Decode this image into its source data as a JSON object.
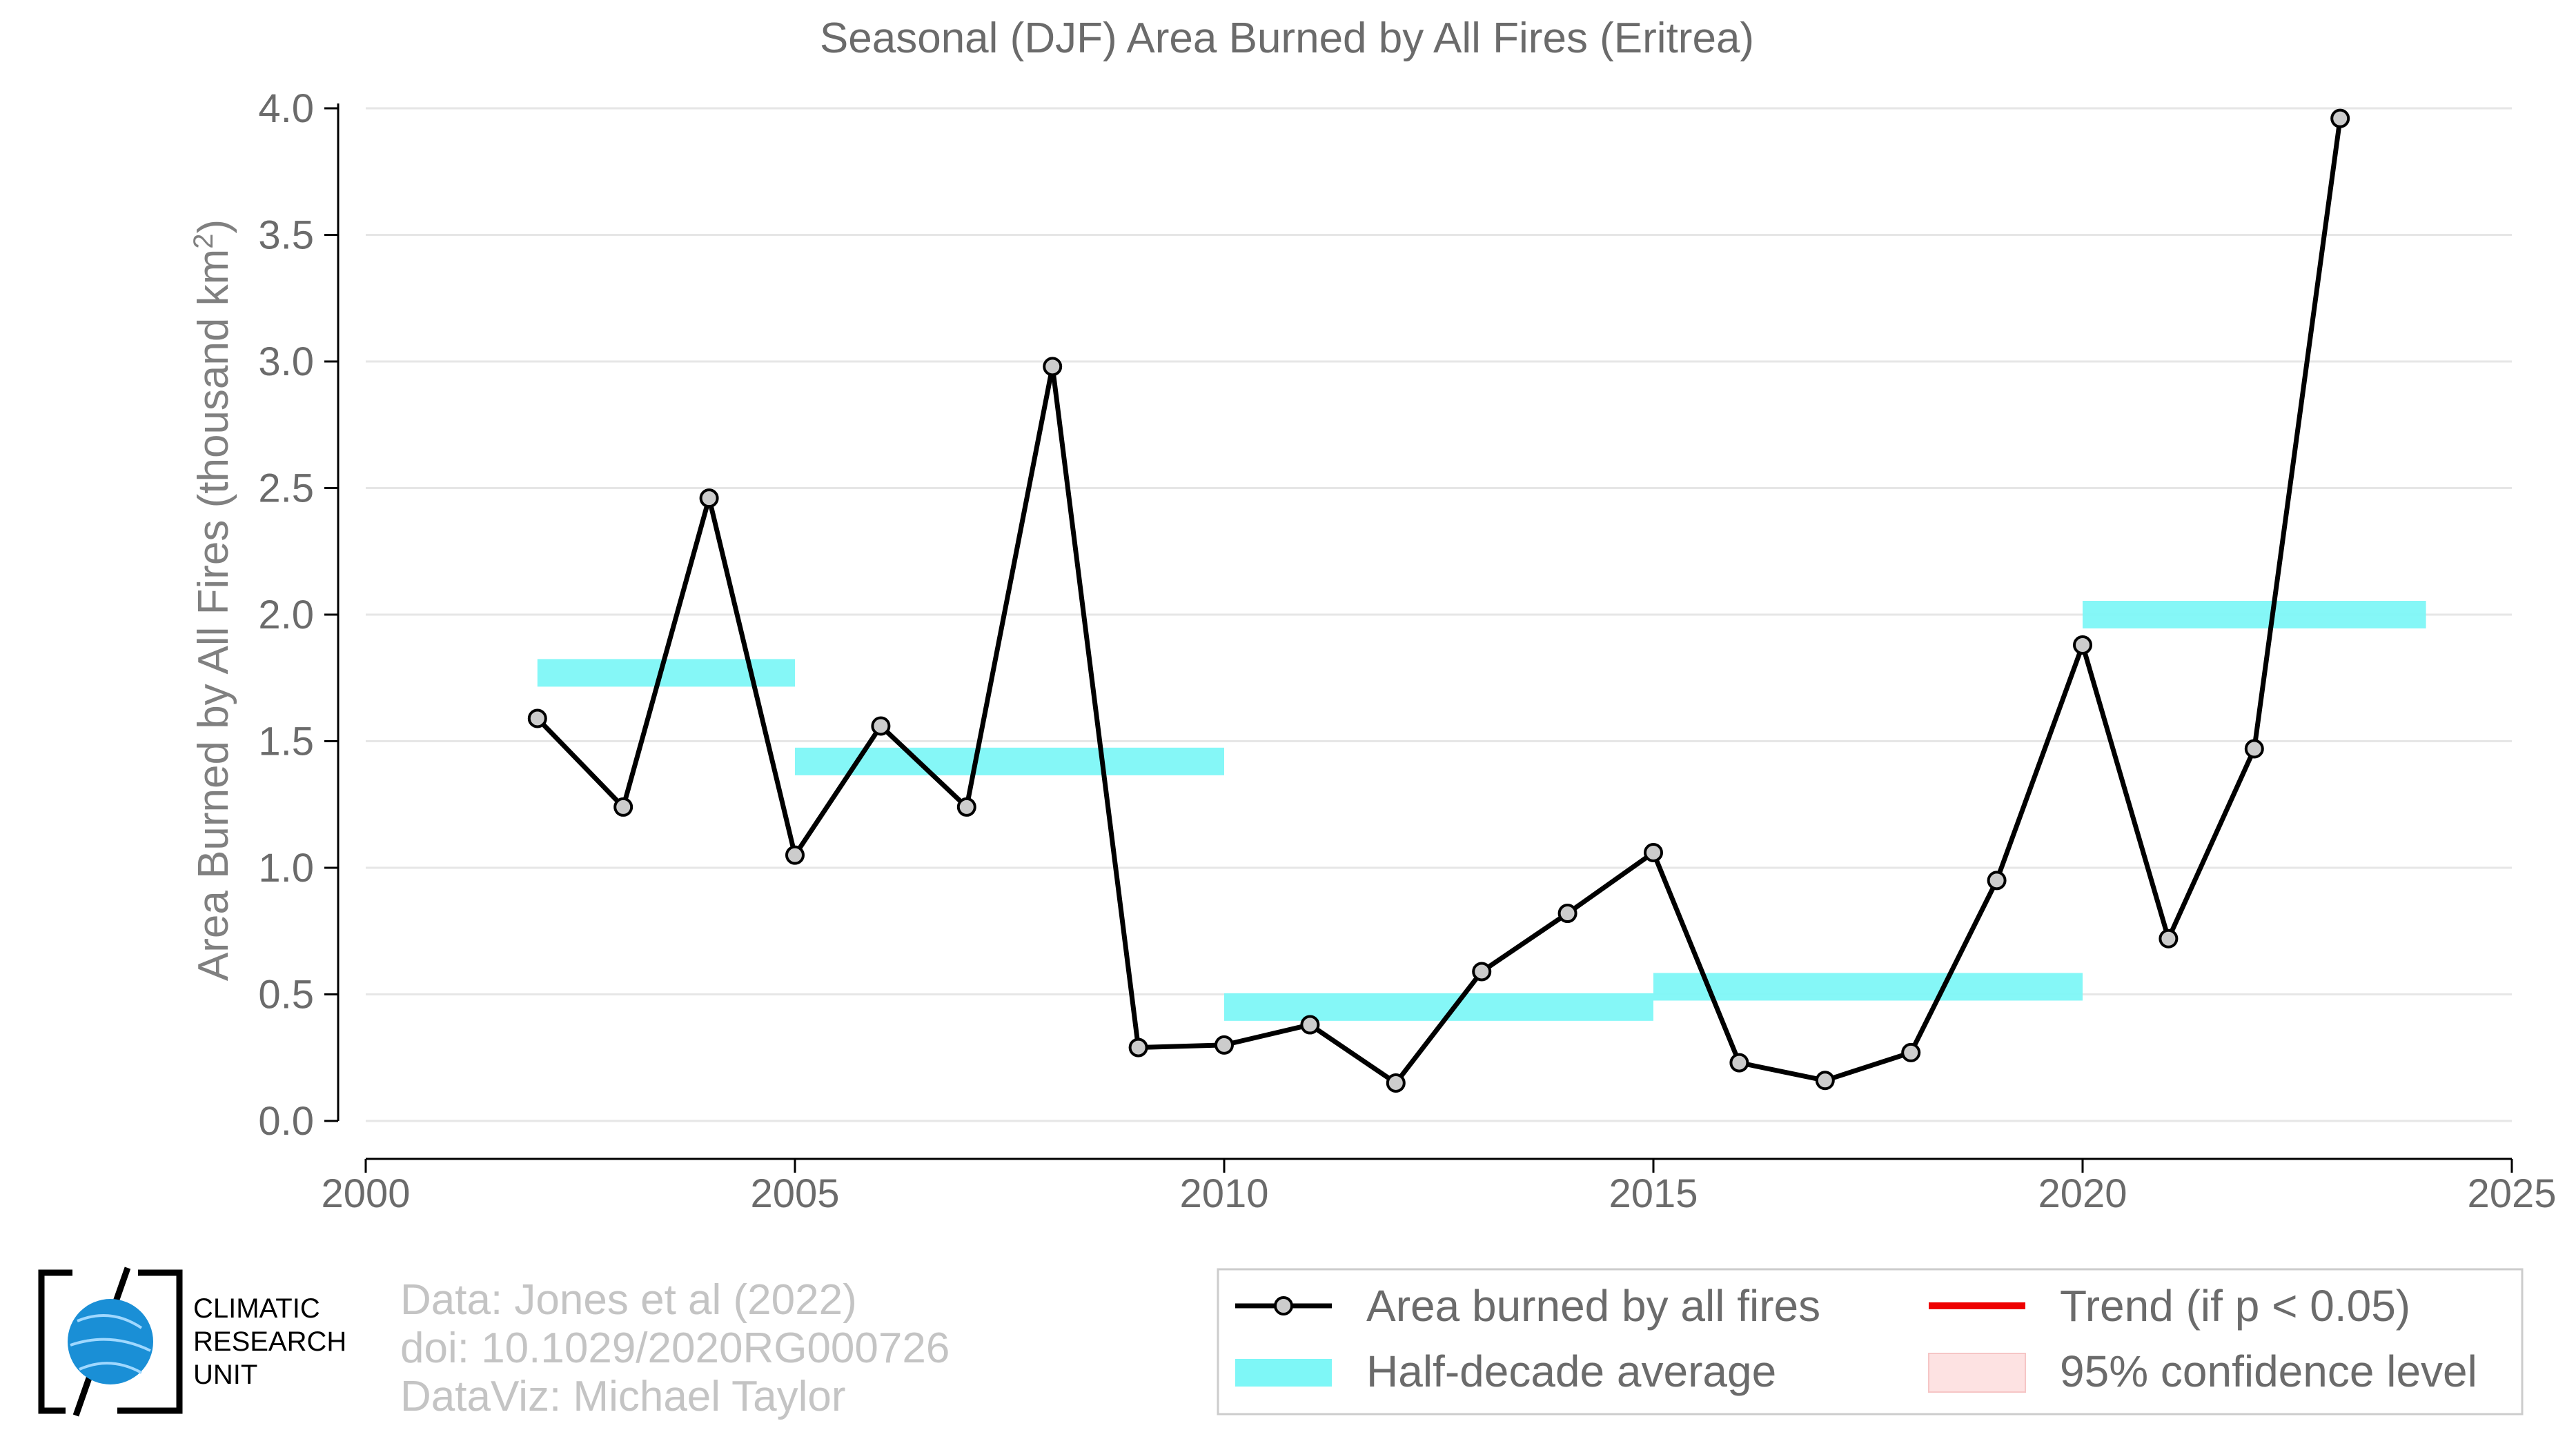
{
  "chart_data": {
    "type": "line",
    "title": "Seasonal (DJF) Area Burned by All Fires (Eritrea)",
    "xlabel": "",
    "ylabel_main": "Area Burned by All Fires (thousand km",
    "ylabel_sup": "2",
    "ylabel_close": ")",
    "xlim": [
      2000,
      2025
    ],
    "ylim": [
      0.0,
      4.0
    ],
    "x_ticks": [
      2000,
      2005,
      2010,
      2015,
      2020,
      2025
    ],
    "y_ticks": [
      "0.0",
      "0.5",
      "1.0",
      "1.5",
      "2.0",
      "2.5",
      "3.0",
      "3.5",
      "4.0"
    ],
    "grid": "horizontal",
    "series": [
      {
        "name": "Area burned by all fires",
        "color": "#000000",
        "marker_fill": "#cccccc",
        "x": [
          2002,
          2003,
          2004,
          2005,
          2006,
          2007,
          2008,
          2009,
          2010,
          2011,
          2012,
          2013,
          2014,
          2015,
          2016,
          2017,
          2018,
          2019,
          2020,
          2021,
          2022,
          2023
        ],
        "y": [
          1.59,
          1.24,
          2.46,
          1.05,
          1.56,
          1.24,
          2.98,
          0.29,
          0.3,
          0.38,
          0.15,
          0.59,
          0.82,
          1.06,
          0.23,
          0.16,
          0.27,
          0.95,
          1.88,
          0.72,
          1.47,
          3.96
        ]
      }
    ],
    "half_decade_average": {
      "name": "Half-decade average",
      "color": "#7ef7f7",
      "segments": [
        {
          "x0": 2002,
          "x1": 2005,
          "y": 1.77
        },
        {
          "x0": 2005,
          "x1": 2010,
          "y": 1.42
        },
        {
          "x0": 2010,
          "x1": 2015,
          "y": 0.45
        },
        {
          "x0": 2015,
          "x1": 2020,
          "y": 0.53
        },
        {
          "x0": 2020,
          "x1": 2024,
          "y": 2.0
        }
      ]
    },
    "legend": {
      "placement": "bottom-right",
      "entries": [
        {
          "label": "Area burned by all fires",
          "kind": "line-marker",
          "color": "#000000"
        },
        {
          "label": "Trend (if p < 0.05)",
          "kind": "line",
          "color": "#ee0000"
        },
        {
          "label": "Half-decade average",
          "kind": "band",
          "color": "#7ef7f7"
        },
        {
          "label": "95% confidence level",
          "kind": "band",
          "color": "#fde2e2"
        }
      ]
    }
  },
  "credits": {
    "line1": "Data: Jones et al (2022)",
    "line2": "doi: 10.1029/2020RG000726",
    "line3": "DataViz: Michael Taylor"
  },
  "logo": {
    "line1": "CLIMATIC",
    "line2": "RESEARCH",
    "line3": "UNIT",
    "globe_color": "#1a8fd6"
  }
}
